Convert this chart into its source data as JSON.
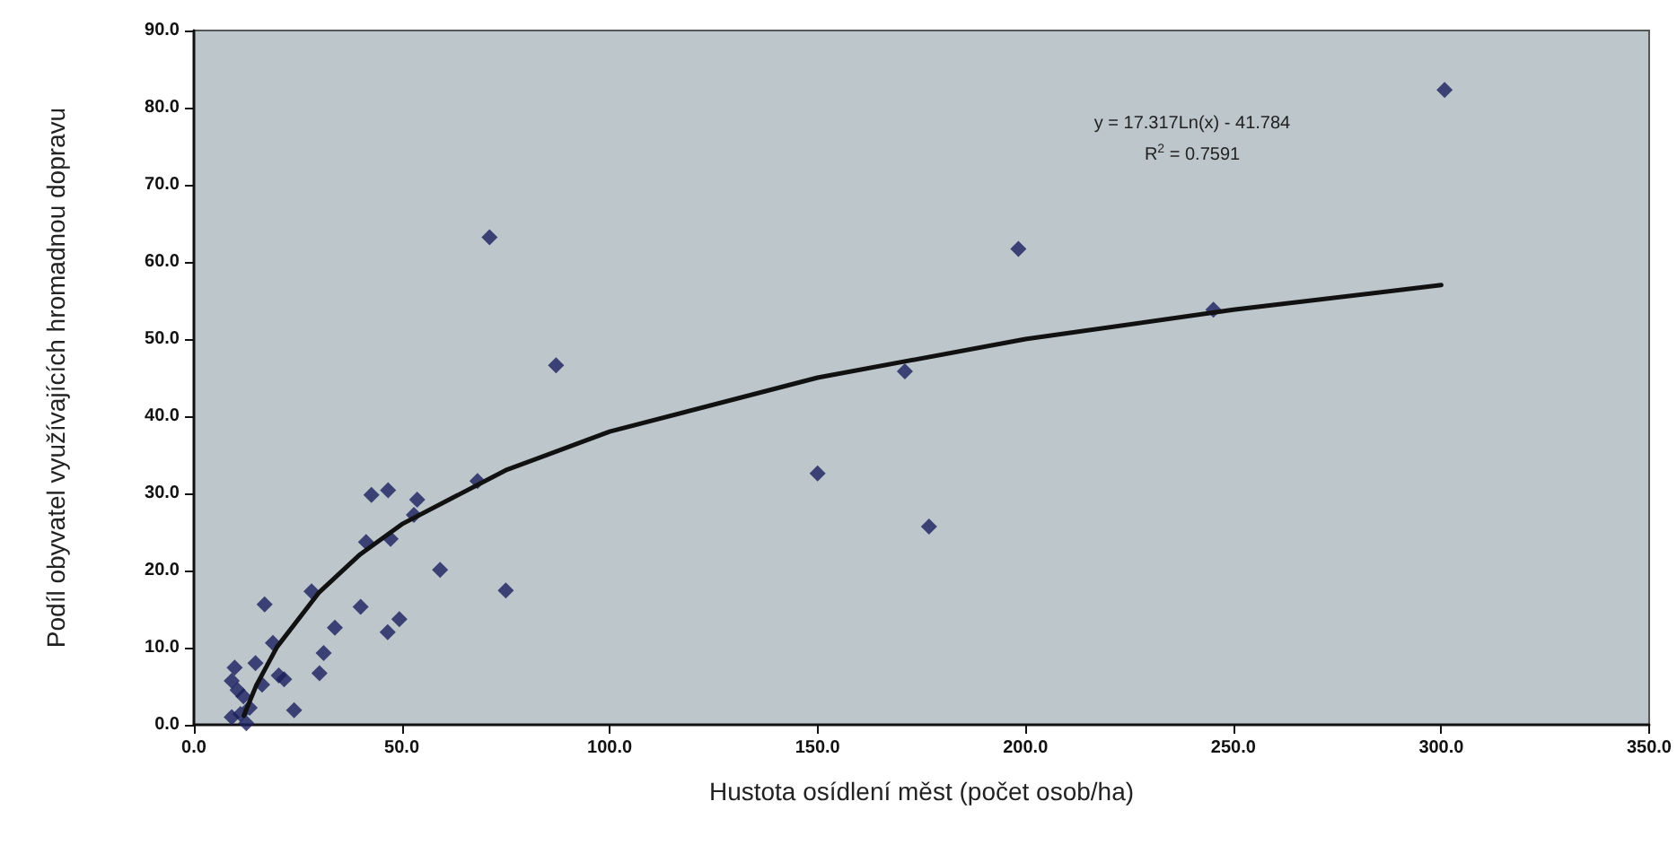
{
  "chart_data": {
    "type": "scatter",
    "xlabel": "Hustota osídlení měst (počet osob/ha)",
    "ylabel": "Podíl obyvatel využívajících hromadnou dopravu",
    "annotations": [
      "y = 17.317Ln(x) - 41.784",
      "R$^{2}$ = 0.7591"
    ],
    "series": [
      {
        "color": "#1a1f5e",
        "marker": "diamond",
        "x": [
          71.1,
          87.1,
          68.2,
          42.7,
          46.7,
          53.7,
          52.9,
          41.4,
          47.3,
          59.2,
          75.0,
          28.3,
          17.0,
          40.1,
          33.9,
          49.4,
          46.6,
          19.0,
          31.2,
          30.2,
          20.4,
          21.7,
          14.8,
          16.4,
          24.1,
          9.8,
          9.1,
          10.5,
          11.9,
          13.4,
          9.1,
          12.6,
          11.2,
          300.8,
          198.3,
          245.2,
          171.0,
          150.0,
          176.8
        ],
        "values": [
          63.2,
          46.6,
          31.6,
          29.8,
          30.4,
          29.2,
          27.2,
          23.7,
          24.1,
          20.1,
          17.4,
          17.3,
          15.6,
          15.3,
          12.6,
          13.7,
          12.0,
          10.6,
          9.3,
          6.7,
          6.4,
          5.9,
          8.0,
          5.2,
          1.9,
          7.4,
          5.7,
          4.5,
          3.7,
          2.2,
          1.0,
          0.2,
          1.4,
          82.3,
          61.7,
          53.8,
          45.8,
          32.6,
          25.7
        ]
      },
      {
        "type": "line",
        "color": "#111111",
        "marker": "none",
        "line_style": "solid",
        "x": [
          12,
          15,
          20,
          30,
          40,
          50,
          75,
          100,
          150,
          200,
          250,
          300
        ],
        "values": [
          1.2,
          5.1,
          10.1,
          17.1,
          22.1,
          26.0,
          33.0,
          38.0,
          45.0,
          50.0,
          53.8,
          57.0
        ]
      }
    ],
    "xlim": [
      0,
      350
    ],
    "xticks": [
      {
        "value": 0,
        "label": "0.0"
      },
      {
        "value": 50,
        "label": "50.0"
      },
      {
        "value": 100,
        "label": "100.0"
      },
      {
        "value": 150,
        "label": "150.0"
      },
      {
        "value": 200,
        "label": "200.0"
      },
      {
        "value": 250,
        "label": "250.0"
      },
      {
        "value": 300,
        "label": "300.0"
      },
      {
        "value": 350,
        "label": "350.0"
      }
    ],
    "ylim": [
      0,
      90
    ],
    "yticks": [
      {
        "value": 0,
        "label": "0.0"
      },
      {
        "value": 10,
        "label": "10.0"
      },
      {
        "value": 20,
        "label": "20.0"
      },
      {
        "value": 30,
        "label": "30.0"
      },
      {
        "value": 40,
        "label": "40.0"
      },
      {
        "value": 50,
        "label": "50.0"
      },
      {
        "value": 60,
        "label": "60.0"
      },
      {
        "value": 70,
        "label": "70.0"
      },
      {
        "value": 80,
        "label": "80.0"
      },
      {
        "value": 90,
        "label": "90.0"
      }
    ],
    "grid": false
  }
}
